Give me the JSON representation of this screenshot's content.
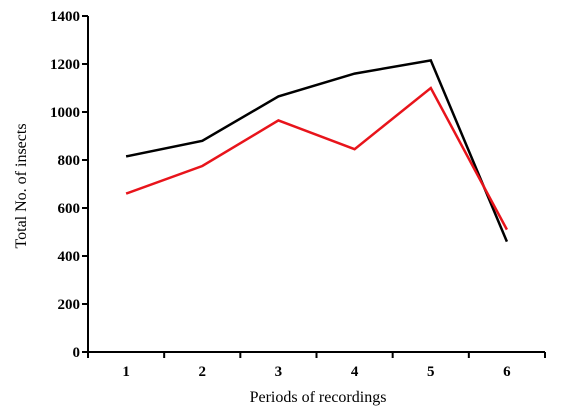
{
  "chart_data": {
    "type": "line",
    "title": "",
    "xlabel": "Periods of recordings",
    "ylabel": "Total No. of insects",
    "categories": [
      "1",
      "2",
      "3",
      "4",
      "5",
      "6"
    ],
    "x": [
      1,
      2,
      3,
      4,
      5,
      6
    ],
    "xlim": [
      0.5,
      6.5
    ],
    "ylim": [
      0,
      1400
    ],
    "yticks": [
      0,
      200,
      400,
      600,
      800,
      1000,
      1200,
      1400
    ],
    "ytick_labels": [
      "0",
      "200",
      "400",
      "600",
      "800",
      "1000",
      "1200",
      "1400"
    ],
    "grid": false,
    "legend": "none",
    "series": [
      {
        "color": "#000000",
        "values": [
          815,
          880,
          1065,
          1160,
          1215,
          460
        ]
      },
      {
        "color": "#e8141b",
        "values": [
          660,
          775,
          965,
          845,
          1100,
          510
        ]
      }
    ]
  }
}
